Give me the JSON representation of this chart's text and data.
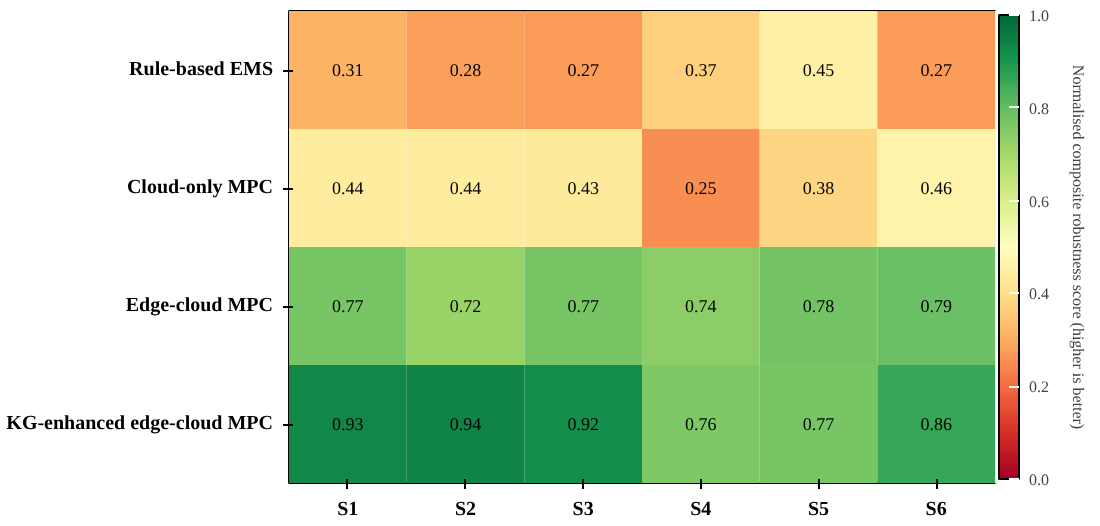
{
  "chart_data": {
    "type": "heatmap",
    "categories": [
      "S1",
      "S2",
      "S3",
      "S4",
      "S5",
      "S6"
    ],
    "y_categories": [
      "Rule-based EMS",
      "Cloud-only MPC",
      "Edge-cloud MPC",
      "KG-enhanced edge-cloud MPC"
    ],
    "cells": [
      [
        0.31,
        0.28,
        0.27,
        0.37,
        0.45,
        0.27
      ],
      [
        0.44,
        0.44,
        0.43,
        0.25,
        0.38,
        0.46
      ],
      [
        0.77,
        0.72,
        0.77,
        0.74,
        0.78,
        0.79
      ],
      [
        0.93,
        0.94,
        0.92,
        0.76,
        0.77,
        0.86
      ]
    ],
    "data_labels": true,
    "clabel": "Normalised composite robustness score (higher is better)",
    "clim": [
      0.0,
      1.0
    ],
    "cticks": [
      {
        "value": 0.0,
        "label": "0.0"
      },
      {
        "value": 0.2,
        "label": "0.2"
      },
      {
        "value": 0.4,
        "label": "0.4"
      },
      {
        "value": 0.6,
        "label": "0.6"
      },
      {
        "value": 0.8,
        "label": "0.8"
      },
      {
        "value": 1.0,
        "label": "1.0"
      }
    ]
  }
}
